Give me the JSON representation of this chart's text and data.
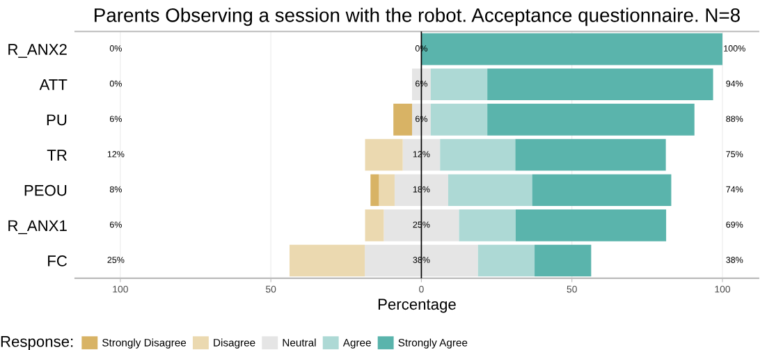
{
  "chart_data": {
    "type": "bar",
    "orientation": "horizontal",
    "stacked": true,
    "title": "Parents Observing a session with the robot. Acceptance questionnaire. N=8",
    "xlabel": "Percentage",
    "legend_title": "Response:",
    "legend": "bottom",
    "grid": "x",
    "categories": [
      "R_ANX2",
      "ATT",
      "PU",
      "TR",
      "PEOU",
      "R_ANX1",
      "FC"
    ],
    "series": [
      {
        "name": "Neutral",
        "color": "#e5e5e5",
        "values": [
          0,
          -3.1,
          -3.1,
          -6.2,
          -8.9,
          -12.5,
          -18.8
        ]
      },
      {
        "name": "Disagree",
        "color": "#ebd9b0",
        "values": [
          0,
          0,
          0,
          -12.5,
          -5.2,
          -6.2,
          -25
        ]
      },
      {
        "name": "Strongly Disagree",
        "color": "#d8b365",
        "values": [
          0,
          0,
          -6.2,
          0,
          -2.8,
          0,
          0
        ]
      },
      {
        "color": "#e5e5e5",
        "values": [
          0,
          3.1,
          3.1,
          6.2,
          8.9,
          12.5,
          18.8
        ]
      },
      {
        "name": "Agree",
        "color": "#add9d5",
        "values": [
          0,
          18.8,
          18.8,
          25,
          27.9,
          18.8,
          18.8
        ]
      },
      {
        "name": "Strongly Agree",
        "color": "#5ab4ac",
        "values": [
          100,
          75,
          68.8,
          50,
          46.2,
          50,
          18.8
        ]
      }
    ],
    "xlim": [
      -115,
      112
    ],
    "xticks": [
      {
        "value": -100,
        "label": "100"
      },
      {
        "value": -50,
        "label": "50"
      },
      0,
      50,
      100
    ],
    "ref_lines": [
      {
        "axis": "x",
        "value": 0,
        "color": "#000000"
      }
    ],
    "annotations": [
      "0%",
      "0%",
      "100%",
      "0%",
      "6%",
      "94%",
      "6%",
      "6%",
      "88%",
      "12%",
      "12%",
      "75%",
      "8%",
      "18%",
      "74%",
      "6%",
      "25%",
      "69%",
      "25%",
      "38%",
      "38%"
    ]
  }
}
